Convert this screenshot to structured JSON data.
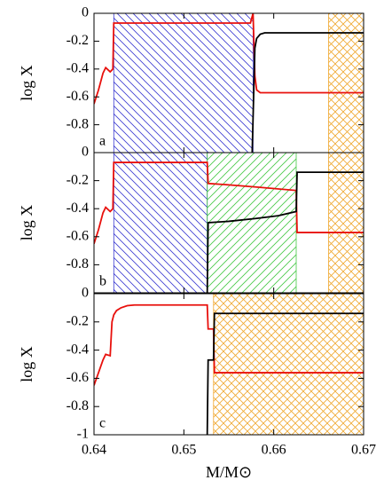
{
  "chart_data": [
    {
      "type": "line",
      "panel_label": "a",
      "ylabel": "log X",
      "xlim": [
        0.64,
        0.67
      ],
      "xticks": [
        0.64,
        0.65,
        0.66,
        0.67
      ],
      "ylim": [
        -1,
        0
      ],
      "yticks": [
        0,
        -0.2,
        -0.4,
        -0.6,
        -0.8
      ],
      "regions": [
        {
          "x": [
            0.6422,
            0.6577
          ],
          "color": "#3a3ad0",
          "pattern": "back-diagonal"
        },
        {
          "x": [
            0.6661,
            0.67
          ],
          "color": "#f0a830",
          "pattern": "cross"
        }
      ],
      "series": [
        {
          "color": "#e8100c",
          "x": [
            0.64,
            0.6405,
            0.641,
            0.6413,
            0.6418,
            0.6421,
            0.6422,
            0.6574,
            0.6577,
            0.6579,
            0.6581,
            0.6585,
            0.659,
            0.67
          ],
          "values": [
            -0.65,
            -0.55,
            -0.43,
            -0.39,
            -0.42,
            -0.4,
            -0.07,
            -0.07,
            0,
            -0.45,
            -0.55,
            -0.57,
            -0.57,
            -0.57
          ]
        },
        {
          "color": "#000000",
          "x": [
            0.6576,
            0.6579,
            0.6581,
            0.6585,
            0.659,
            0.67
          ],
          "values": [
            -1,
            -0.25,
            -0.18,
            -0.15,
            -0.14,
            -0.14
          ]
        }
      ]
    },
    {
      "type": "line",
      "panel_label": "b",
      "ylabel": "log X",
      "xlim": [
        0.64,
        0.67
      ],
      "xticks": [
        0.64,
        0.65,
        0.66,
        0.67
      ],
      "ylim": [
        -1,
        0
      ],
      "yticks": [
        0,
        -0.2,
        -0.4,
        -0.6,
        -0.8
      ],
      "regions": [
        {
          "x": [
            0.6422,
            0.6526
          ],
          "color": "#3a3ad0",
          "pattern": "back-diagonal"
        },
        {
          "x": [
            0.6526,
            0.6625
          ],
          "color": "#44c844",
          "pattern": "diagonal"
        },
        {
          "x": [
            0.6661,
            0.67
          ],
          "color": "#f0a830",
          "pattern": "cross"
        }
      ],
      "series": [
        {
          "color": "#e8100c",
          "x": [
            0.64,
            0.6405,
            0.641,
            0.6413,
            0.6418,
            0.6421,
            0.6422,
            0.6526,
            0.6527,
            0.655,
            0.658,
            0.6625,
            0.6626,
            0.67
          ],
          "values": [
            -0.65,
            -0.55,
            -0.43,
            -0.39,
            -0.42,
            -0.4,
            -0.07,
            -0.07,
            -0.22,
            -0.23,
            -0.245,
            -0.27,
            -0.57,
            -0.57
          ]
        },
        {
          "color": "#000000",
          "x": [
            0.6526,
            0.6527,
            0.655,
            0.658,
            0.6605,
            0.6625,
            0.6626,
            0.67
          ],
          "values": [
            -1,
            -0.5,
            -0.49,
            -0.47,
            -0.45,
            -0.42,
            -0.14,
            -0.14
          ]
        }
      ]
    },
    {
      "type": "line",
      "panel_label": "c",
      "ylabel": "log X",
      "xlabel": "M/M⊙",
      "xlim": [
        0.64,
        0.67
      ],
      "xticks": [
        0.64,
        0.65,
        0.66,
        0.67
      ],
      "ylim": [
        -1,
        0
      ],
      "yticks": [
        0,
        -0.2,
        -0.4,
        -0.6,
        -0.8,
        -1
      ],
      "regions": [
        {
          "x": [
            0.6533,
            0.67
          ],
          "color": "#f0a830",
          "pattern": "cross"
        }
      ],
      "series": [
        {
          "color": "#e8100c",
          "x": [
            0.64,
            0.6405,
            0.641,
            0.6413,
            0.6418,
            0.642,
            0.6422,
            0.6425,
            0.643,
            0.6437,
            0.6445,
            0.6526,
            0.6527,
            0.6533,
            0.6534,
            0.67
          ],
          "values": [
            -0.65,
            -0.56,
            -0.47,
            -0.43,
            -0.44,
            -0.2,
            -0.15,
            -0.12,
            -0.1,
            -0.085,
            -0.08,
            -0.08,
            -0.25,
            -0.25,
            -0.56,
            -0.56
          ]
        },
        {
          "color": "#000000",
          "x": [
            0.6526,
            0.6527,
            0.6533,
            0.6534,
            0.67
          ],
          "values": [
            -1,
            -0.47,
            -0.47,
            -0.14,
            -0.14
          ]
        }
      ]
    }
  ]
}
